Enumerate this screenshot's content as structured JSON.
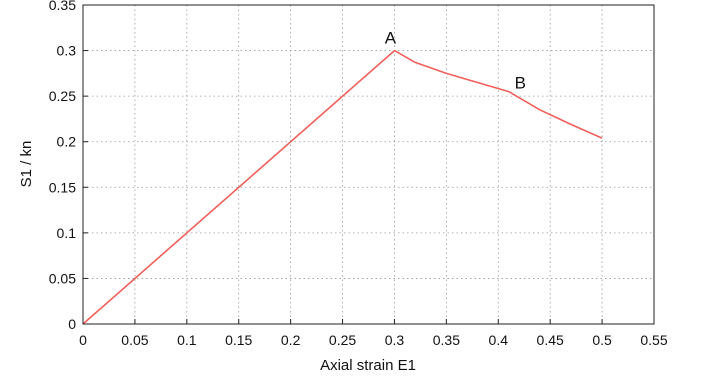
{
  "chart_data": {
    "type": "line",
    "xlabel": "Axial strain E1",
    "ylabel": "S1 / kn",
    "xlim": [
      0,
      0.55
    ],
    "ylim": [
      0,
      0.35
    ],
    "grid": true,
    "x_ticks": [
      "0",
      "0.05",
      "0.1",
      "0.15",
      "0.2",
      "0.25",
      "0.3",
      "0.35",
      "0.4",
      "0.45",
      "0.5",
      "0.55"
    ],
    "y_ticks": [
      "0",
      "0.05",
      "0.1",
      "0.15",
      "0.2",
      "0.25",
      "0.3",
      "0.35"
    ],
    "series": [
      {
        "color": "#f0605a",
        "x": [
          0,
          0.3,
          0.32,
          0.35,
          0.38,
          0.41,
          0.44,
          0.47,
          0.5
        ],
        "y": [
          0,
          0.3,
          0.287,
          0.275,
          0.265,
          0.255,
          0.235,
          0.219,
          0.204
        ]
      }
    ],
    "annotations": [
      {
        "text": "A",
        "x": 0.3,
        "y": 0.3
      },
      {
        "text": "B",
        "x": 0.41,
        "y": 0.255
      }
    ]
  }
}
